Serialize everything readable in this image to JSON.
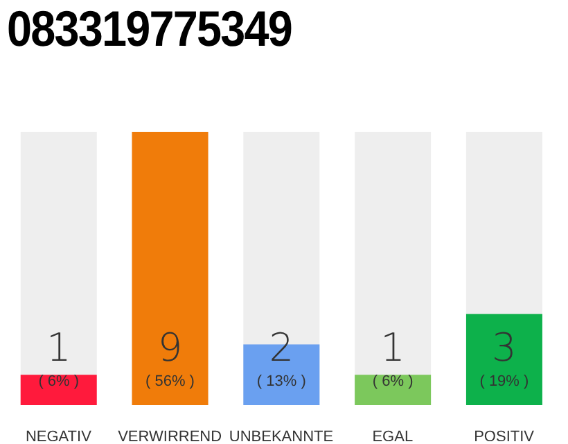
{
  "chart_data": {
    "type": "bar",
    "title": "083319775349",
    "categories": [
      "NEGATIV",
      "VERWIRREND",
      "UNBEKANNTE",
      "EGAL",
      "POSITIV"
    ],
    "values": [
      1,
      9,
      2,
      1,
      3
    ],
    "colors": [
      "#ff1a3c",
      "#f07c0a",
      "#6aa0f0",
      "#7cc85c",
      "#0db14b"
    ],
    "data_labels": true,
    "annotations": [
      "( 6% )",
      "( 56% )",
      "( 13% )",
      "( 6% )",
      "( 19% )"
    ]
  }
}
